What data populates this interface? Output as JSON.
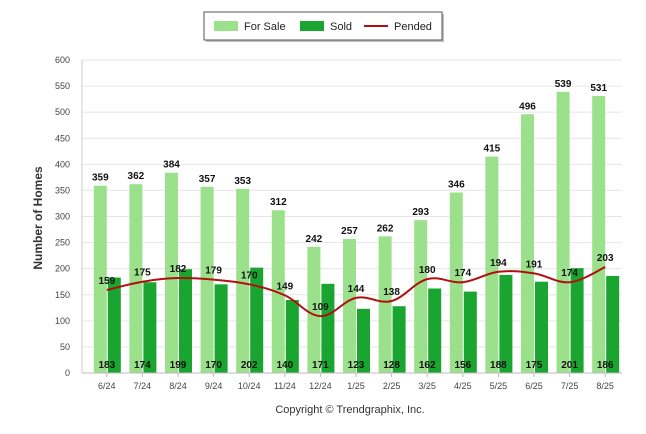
{
  "chart_data": {
    "type": "bar",
    "categories": [
      "6/24",
      "7/24",
      "8/24",
      "9/24",
      "10/24",
      "11/24",
      "12/24",
      "1/25",
      "2/25",
      "3/25",
      "4/25",
      "5/25",
      "6/25",
      "7/25",
      "8/25"
    ],
    "series": [
      {
        "name": "For Sale",
        "type": "bar",
        "color": "#9be08b",
        "values": [
          359,
          362,
          384,
          357,
          353,
          312,
          242,
          257,
          262,
          293,
          346,
          415,
          496,
          539,
          531
        ]
      },
      {
        "name": "Sold",
        "type": "bar",
        "color": "#1aa530",
        "values": [
          183,
          174,
          199,
          170,
          202,
          140,
          171,
          123,
          128,
          162,
          156,
          188,
          175,
          201,
          186
        ]
      },
      {
        "name": "Pended",
        "type": "line",
        "color": "#b01010",
        "values": [
          159,
          175,
          182,
          179,
          170,
          149,
          109,
          144,
          138,
          180,
          174,
          194,
          191,
          174,
          203
        ]
      }
    ],
    "ylabel": "Number of Homes",
    "xlabel": "",
    "ylim": [
      0,
      600
    ],
    "yticks": [
      0,
      50,
      100,
      150,
      200,
      250,
      300,
      350,
      400,
      450,
      500,
      550,
      600
    ],
    "grid": true,
    "legend_position": "top-center",
    "footer": "Copyright © Trendgraphix, Inc."
  }
}
